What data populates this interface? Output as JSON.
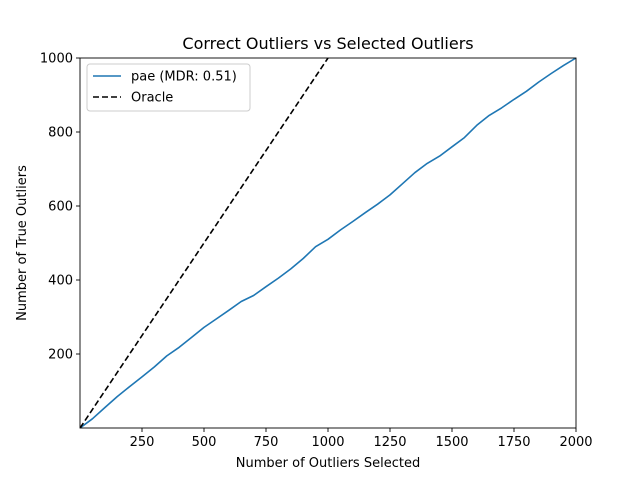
{
  "chart_data": {
    "type": "line",
    "title": "Correct Outliers vs Selected Outliers",
    "xlabel": "Number of Outliers Selected",
    "ylabel": "Number of True Outliers",
    "xlim": [
      0,
      2000
    ],
    "ylim": [
      0,
      1000
    ],
    "x_ticks": [
      250,
      500,
      750,
      1000,
      1250,
      1500,
      1750,
      2000
    ],
    "y_ticks": [
      200,
      400,
      600,
      800,
      1000
    ],
    "grid": false,
    "legend_position": "top-left",
    "series": [
      {
        "name": "pae (MDR: 0.51)",
        "color": "#1f77b4",
        "style": "solid",
        "x": [
          0,
          50,
          100,
          150,
          200,
          250,
          300,
          350,
          400,
          450,
          500,
          550,
          600,
          650,
          700,
          750,
          800,
          850,
          900,
          950,
          1000,
          1050,
          1100,
          1150,
          1200,
          1250,
          1300,
          1350,
          1400,
          1450,
          1500,
          1550,
          1600,
          1650,
          1700,
          1750,
          1800,
          1850,
          1900,
          1950,
          2000
        ],
        "y": [
          0,
          25,
          55,
          85,
          112,
          138,
          165,
          195,
          218,
          245,
          272,
          295,
          318,
          342,
          358,
          382,
          405,
          430,
          458,
          490,
          510,
          535,
          558,
          582,
          605,
          630,
          660,
          690,
          715,
          735,
          760,
          785,
          818,
          845,
          865,
          888,
          910,
          935,
          958,
          980,
          1000
        ]
      },
      {
        "name": "Oracle",
        "color": "#000000",
        "style": "dashed",
        "x": [
          0,
          1000
        ],
        "y": [
          0,
          1000
        ]
      }
    ]
  }
}
